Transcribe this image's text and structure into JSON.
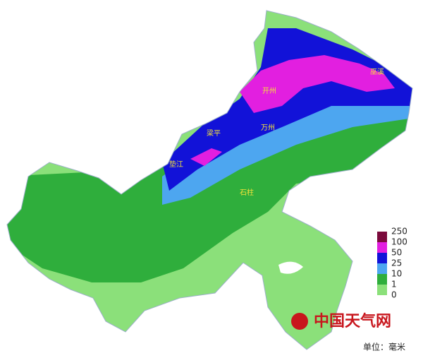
{
  "map": {
    "places": [
      "巫溪",
      "开州",
      "万州",
      "梁平",
      "垫江",
      "石柱"
    ],
    "watermark": "中国天气网",
    "legend": {
      "ticks": [
        250,
        100,
        50,
        25,
        10,
        1,
        0
      ],
      "colors": [
        "#7b0a3c",
        "#e21fe0",
        "#1212d8",
        "#4da6f0",
        "#2fae3c",
        "#8be07a"
      ],
      "unit": "单位：毫米"
    }
  }
}
